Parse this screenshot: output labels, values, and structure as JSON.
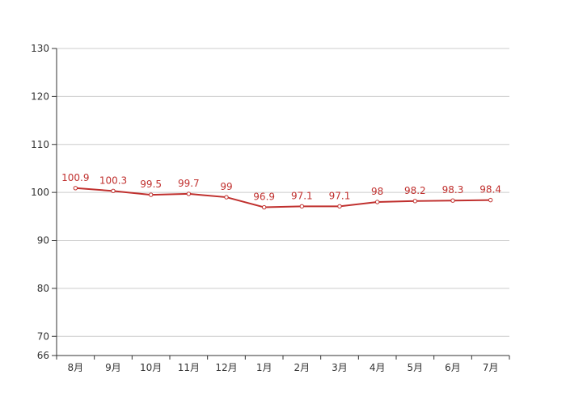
{
  "chart_data": {
    "type": "line",
    "categories": [
      "8月",
      "9月",
      "10月",
      "11月",
      "12月",
      "1月",
      "2月",
      "3月",
      "4月",
      "5月",
      "6月",
      "7月"
    ],
    "series": [
      {
        "values": [
          100.9,
          100.3,
          99.5,
          99.7,
          99,
          96.9,
          97.1,
          97.1,
          98,
          98.2,
          98.3,
          98.4
        ],
        "labels": [
          "100.9",
          "100.3",
          "99.5",
          "99.7",
          "99",
          "96.9",
          "97.1",
          "97.1",
          "98",
          "98.2",
          "98.3",
          "98.4"
        ]
      }
    ],
    "ylim": [
      66,
      130
    ],
    "yticks": [
      66,
      70,
      80,
      90,
      100,
      110,
      120,
      130
    ],
    "ytick_labels": [
      "66",
      "70",
      "80",
      "90",
      "100",
      "110",
      "120",
      "130"
    ],
    "grid": true,
    "legend": "none",
    "colors": {
      "line": "#c0302e",
      "grid": "#cccccc",
      "axis": "#333333",
      "text": "#333333"
    }
  }
}
